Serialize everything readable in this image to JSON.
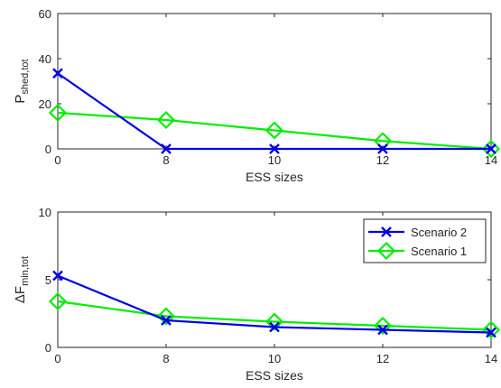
{
  "chart_data": [
    {
      "type": "line",
      "categories": [
        "0",
        "8",
        "10",
        "12",
        "14"
      ],
      "xlabel": "ESS sizes",
      "ylabel_main": "P",
      "ylabel_sub": "shed,tot",
      "ylim": [
        0,
        60
      ],
      "yticks": [
        "0",
        "20",
        "40",
        "60"
      ],
      "grid": false,
      "series": [
        {
          "name": "Scenario 2",
          "color": "#0000e6",
          "marker": "x-cross",
          "values": [
            33.5,
            0,
            0,
            0,
            0
          ]
        },
        {
          "name": "Scenario 1",
          "color": "#00ee00",
          "marker": "diamond",
          "values": [
            16,
            12.8,
            8.2,
            3.5,
            0
          ]
        }
      ]
    },
    {
      "type": "line",
      "categories": [
        "0",
        "8",
        "10",
        "12",
        "14"
      ],
      "xlabel": "ESS sizes",
      "ylabel_prefix": "Δ",
      "ylabel_main": "F",
      "ylabel_sub": "min,tot",
      "ylim": [
        0,
        10
      ],
      "yticks": [
        "0",
        "5",
        "10"
      ],
      "grid": false,
      "legend_position": "top-right",
      "series": [
        {
          "name": "Scenario 2",
          "color": "#0000e6",
          "marker": "x-cross",
          "values": [
            5.3,
            2.0,
            1.5,
            1.3,
            1.1
          ]
        },
        {
          "name": "Scenario 1",
          "color": "#00ee00",
          "marker": "diamond",
          "values": [
            3.4,
            2.3,
            1.9,
            1.6,
            1.3
          ]
        }
      ]
    }
  ]
}
